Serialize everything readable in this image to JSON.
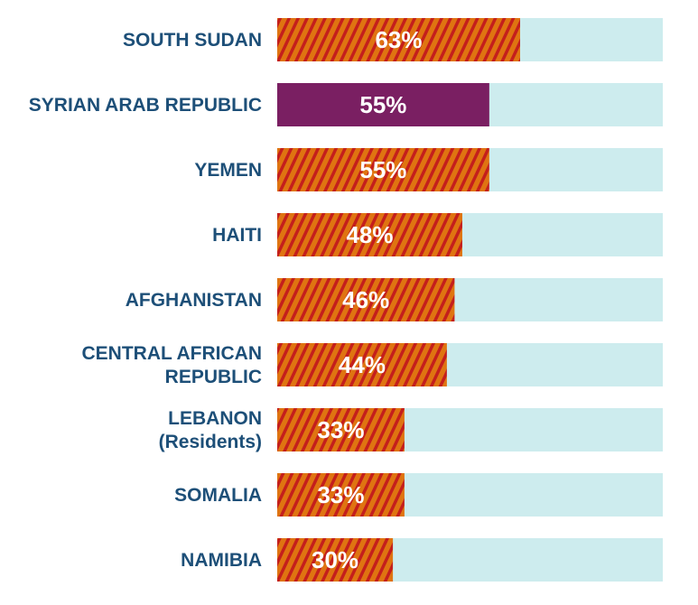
{
  "chart_data": {
    "type": "bar",
    "orientation": "horizontal",
    "categories": [
      [
        "SOUTH SUDAN"
      ],
      [
        "SYRIAN ARAB REPUBLIC"
      ],
      [
        "YEMEN"
      ],
      [
        "HAITI"
      ],
      [
        "AFGHANISTAN"
      ],
      [
        "CENTRAL AFRICAN",
        "REPUBLIC"
      ],
      [
        "LEBANON",
        "(Residents)"
      ],
      [
        "SOMALIA"
      ],
      [
        "NAMIBIA"
      ]
    ],
    "values": [
      63,
      55,
      55,
      48,
      46,
      44,
      33,
      33,
      30
    ],
    "value_labels": [
      "63%",
      "55%",
      "55%",
      "48%",
      "46%",
      "44%",
      "33%",
      "33%",
      "30%"
    ],
    "highlight_index": 1,
    "xlim": [
      0,
      100
    ],
    "colors": {
      "track": "#cdecee",
      "highlight": "#7a1f62",
      "stripe_a": "#df7411",
      "stripe_b": "#c41f1c",
      "label": "#1d4f78"
    }
  }
}
